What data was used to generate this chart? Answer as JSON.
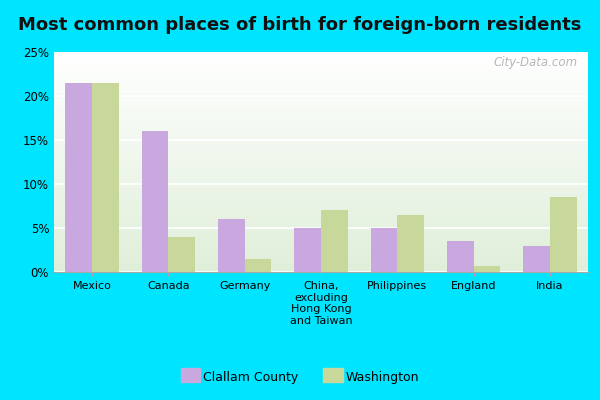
{
  "title": "Most common places of birth for foreign-born residents",
  "categories": [
    "Mexico",
    "Canada",
    "Germany",
    "China,\nexcluding\nHong Kong\nand Taiwan",
    "Philippines",
    "England",
    "India"
  ],
  "clallam_values": [
    21.5,
    16.0,
    6.0,
    5.0,
    5.0,
    3.5,
    3.0
  ],
  "washington_values": [
    21.5,
    4.0,
    1.5,
    7.0,
    6.5,
    0.7,
    8.5
  ],
  "clallam_color": "#c9a8e0",
  "washington_color": "#c8d89a",
  "clallam_label": "Clallam County",
  "washington_label": "Washington",
  "ylim": [
    0,
    25
  ],
  "yticks": [
    0,
    5,
    10,
    15,
    20,
    25
  ],
  "ytick_labels": [
    "0%",
    "5%",
    "10%",
    "15%",
    "20%",
    "25%"
  ],
  "outer_background": "#00e5ff",
  "title_fontsize": 13,
  "watermark": "City-Data.com",
  "bar_width": 0.35
}
